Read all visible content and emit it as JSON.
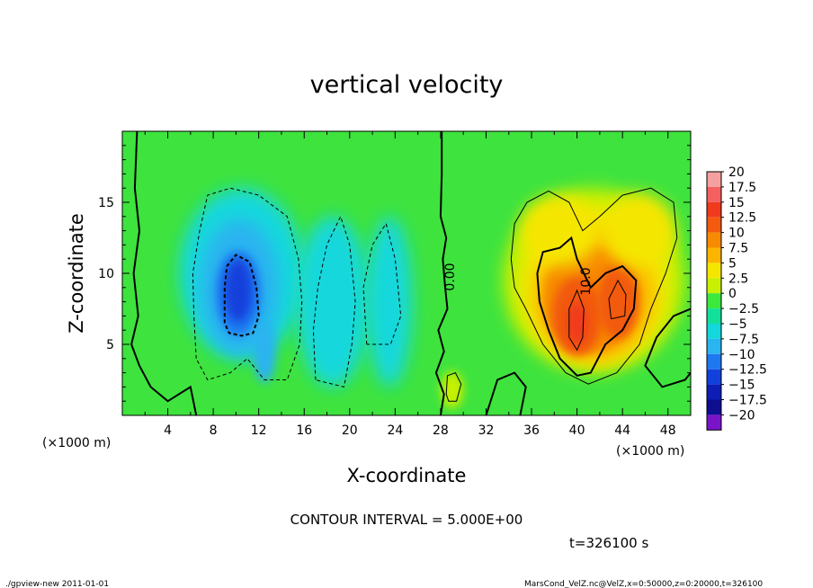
{
  "chart_data": {
    "type": "heatmap",
    "title": "vertical velocity",
    "xlabel": "X-coordinate",
    "ylabel": "Z-coordinate",
    "x_unit_left": "(×1000 m)",
    "x_unit_right": "(×1000 m)",
    "xlim": [
      0,
      50
    ],
    "ylim": [
      0,
      20
    ],
    "x_ticks": [
      4,
      8,
      12,
      16,
      20,
      24,
      28,
      32,
      36,
      40,
      44,
      48
    ],
    "y_ticks": [
      5,
      10,
      15
    ],
    "colorbar_levels": [
      "20",
      "17.5",
      "15",
      "12.5",
      "10",
      "7.5",
      "5",
      "2.5",
      "0",
      "−2.5",
      "−5",
      "−7.5",
      "−10",
      "−12.5",
      "−15",
      "−17.5",
      "−20"
    ],
    "colorbar_colors": [
      "#f4a0a0",
      "#f46060",
      "#f03a1e",
      "#f25a10",
      "#f78a00",
      "#fbb500",
      "#f5e600",
      "#c8f000",
      "#3ce83c",
      "#12e09a",
      "#12d8dc",
      "#2ab4f0",
      "#1e78f0",
      "#1240dc",
      "#0c1eb4",
      "#0e0e90",
      "#7a14c8"
    ],
    "contour_interval": "CONTOUR INTERVAL = 5.000E+00",
    "contour_labels": [
      "0.00",
      "10.0"
    ],
    "time_label": "t=326100 s",
    "features": [
      {
        "type": "downdraft",
        "x": 10.5,
        "z": 8.5,
        "w": -12
      },
      {
        "type": "downdraft",
        "x": 19,
        "z": 8,
        "w": -6
      },
      {
        "type": "updraft",
        "x": 40,
        "z": 7,
        "w": 13
      },
      {
        "type": "updraft",
        "x": 43.5,
        "z": 8,
        "w": 12
      }
    ]
  },
  "footer": {
    "left": "./gpview-new  2011-01-01",
    "right": "MarsCond_VelZ.nc@VelZ,x=0:50000,z=0:20000,t=326100"
  }
}
